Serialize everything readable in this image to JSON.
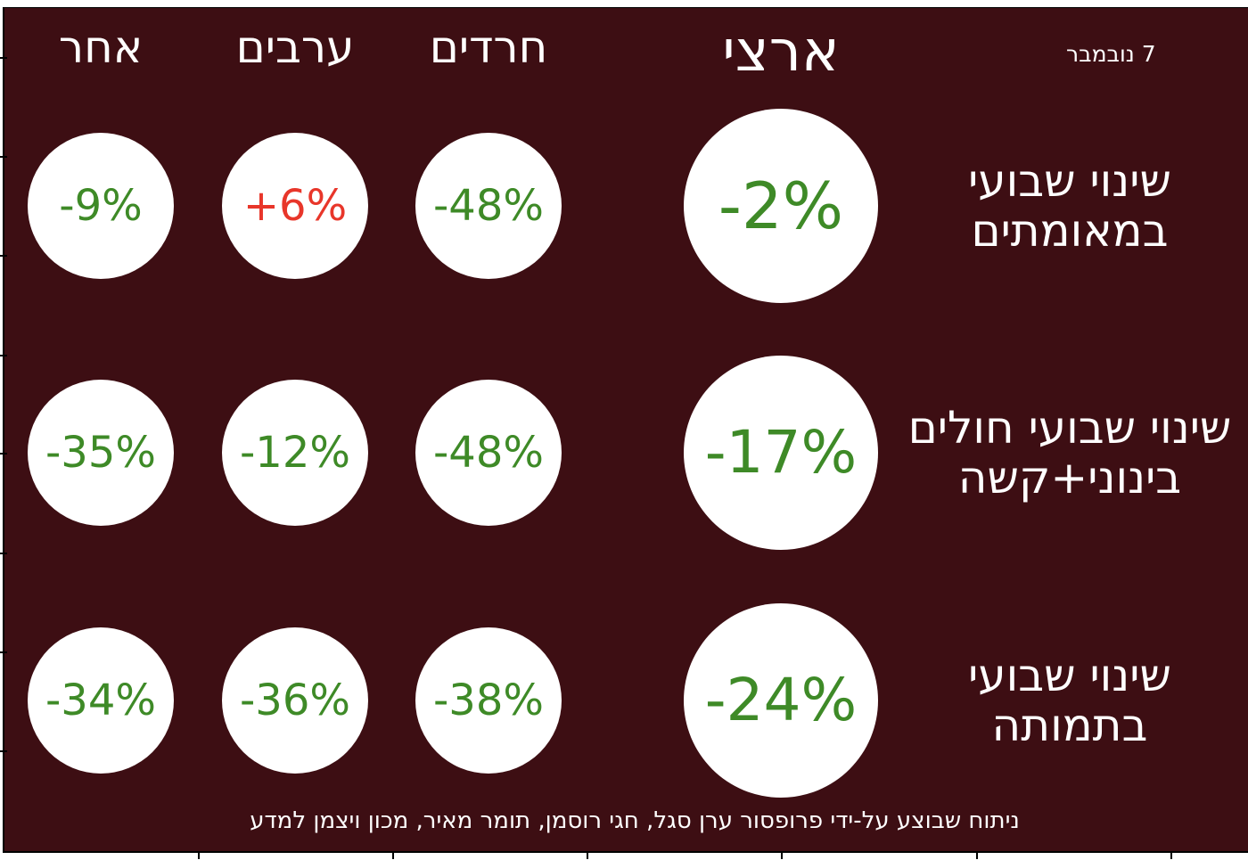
{
  "chart_data": {
    "type": "table",
    "date_label": "7 נובמבר",
    "columns": [
      "ארצי",
      "חרדים",
      "ערבים",
      "אחר"
    ],
    "rows": [
      {
        "label_lines": [
          "שינוי שבועי",
          "במאומתים"
        ],
        "values": [
          "-2%",
          "-48%",
          "+6%",
          "-9%"
        ]
      },
      {
        "label_lines": [
          "שינוי שבועי חולים",
          "בינוני+קשה"
        ],
        "values": [
          "-17%",
          "-48%",
          "-12%",
          "-35%"
        ]
      },
      {
        "label_lines": [
          "שינוי שבועי",
          "בתמותה"
        ],
        "values": [
          "-24%",
          "-38%",
          "-36%",
          "-34%"
        ]
      }
    ],
    "footer": "ניתוח שבוצע על-ידי פרופסור ערן סגל, חגי רוסמן, תומר מאיר, מכון ויצמן למדע",
    "colors": {
      "background": "#3d0e13",
      "circle": "#ffffff",
      "decrease": "#3e8a27",
      "increase": "#e8362a",
      "text": "#ffffff"
    }
  }
}
